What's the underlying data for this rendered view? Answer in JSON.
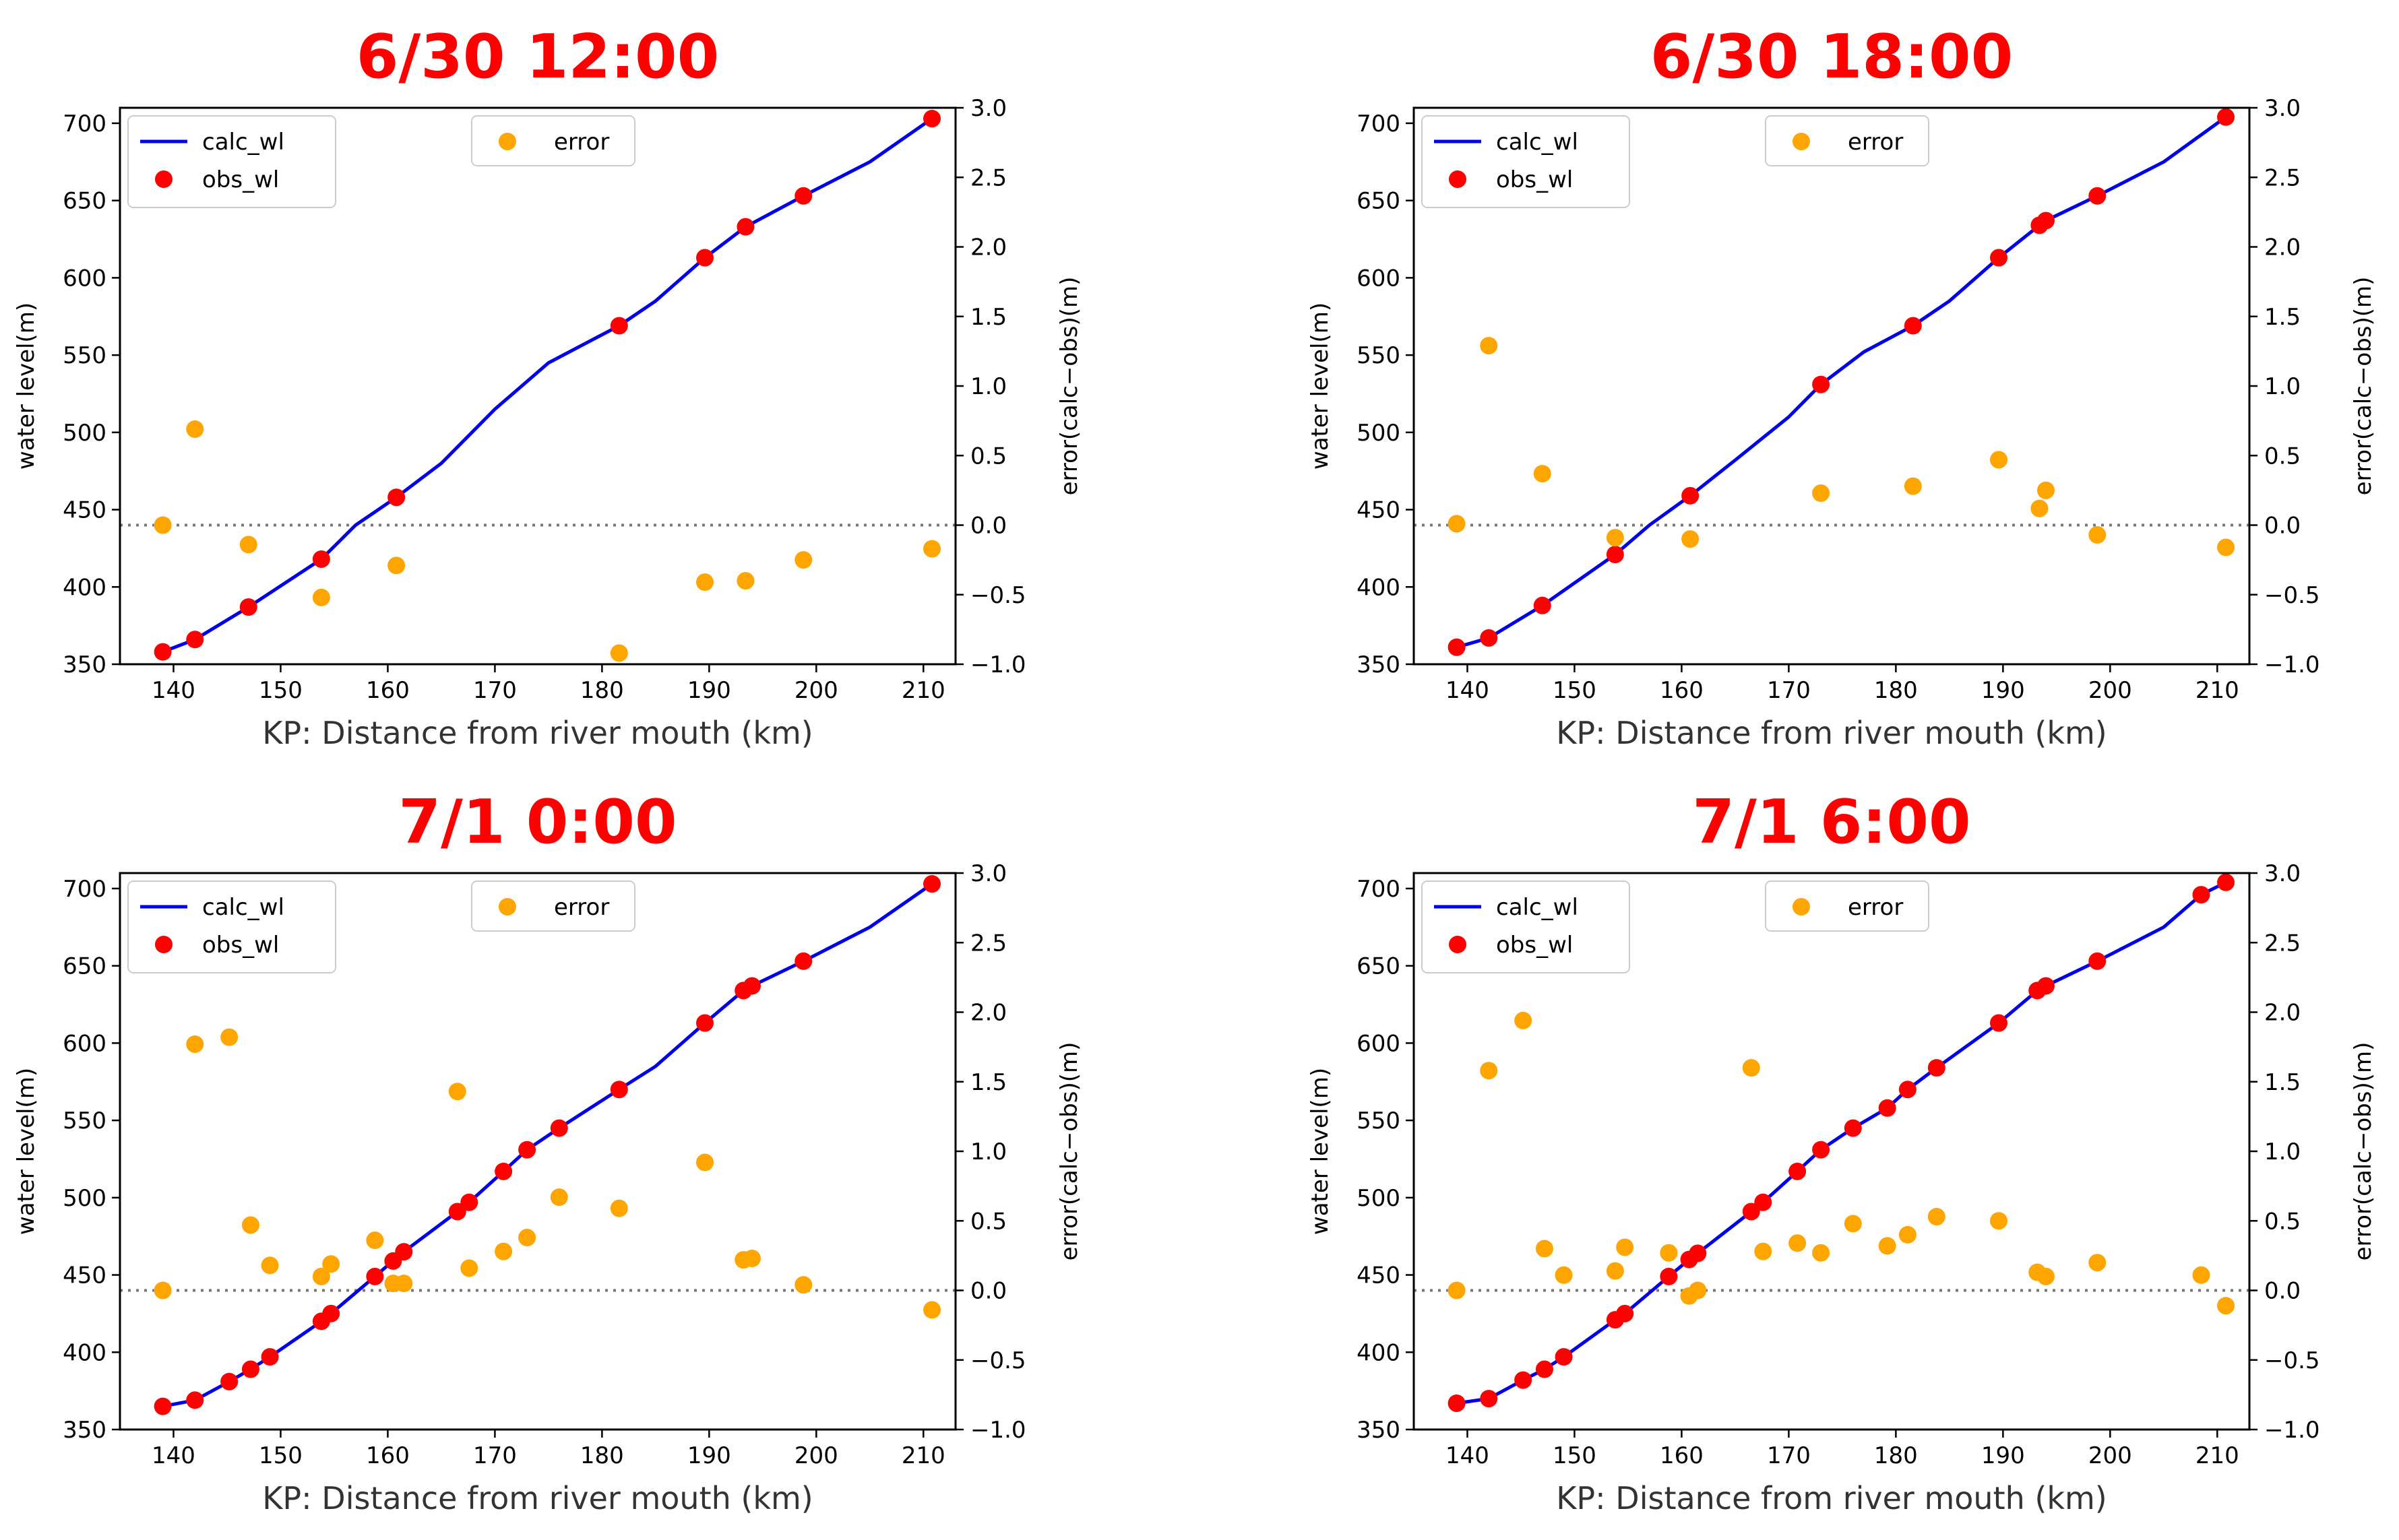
{
  "colors": {
    "calc": "#0000ee",
    "obs": "#ff0000",
    "error": "#ffa500",
    "title": "#ff0000"
  },
  "chart_data": [
    {
      "type": "line",
      "title": "6/30 12:00",
      "xlabel": "KP: Distance from river mouth (km)",
      "ylabel": "water level(m)",
      "y2label": "error(calc−obs)(m)",
      "xlim": [
        135,
        213
      ],
      "ylim": [
        350,
        710
      ],
      "y2lim": [
        -1.0,
        3.0
      ],
      "xticks": [
        140,
        150,
        160,
        170,
        180,
        190,
        200,
        210
      ],
      "yticks": [
        350,
        400,
        450,
        500,
        550,
        600,
        650,
        700
      ],
      "y2ticks": [
        "−1.0",
        "−0.5",
        "0.0",
        "0.5",
        "1.0",
        "1.5",
        "2.0",
        "2.5",
        "3.0"
      ],
      "legend": {
        "calc": "calc_wl",
        "obs": "obs_wl",
        "error": "error"
      },
      "calc_wl": [
        [
          139,
          358
        ],
        [
          142,
          366
        ],
        [
          147,
          387
        ],
        [
          153.8,
          418
        ],
        [
          157,
          440
        ],
        [
          160.8,
          458
        ],
        [
          165,
          480
        ],
        [
          170,
          515
        ],
        [
          175,
          545
        ],
        [
          181.6,
          569
        ],
        [
          185,
          585
        ],
        [
          189.6,
          613
        ],
        [
          193.4,
          633
        ],
        [
          198.8,
          653
        ],
        [
          205,
          675
        ],
        [
          210.8,
          703
        ]
      ],
      "obs_wl": [
        [
          139,
          358
        ],
        [
          142,
          366
        ],
        [
          147,
          387
        ],
        [
          153.8,
          418
        ],
        [
          160.8,
          458
        ],
        [
          181.6,
          569
        ],
        [
          189.6,
          613
        ],
        [
          193.4,
          633
        ],
        [
          198.8,
          653
        ],
        [
          210.8,
          703
        ]
      ],
      "error": [
        [
          139,
          0.0
        ],
        [
          142,
          0.69
        ],
        [
          147,
          -0.14
        ],
        [
          153.8,
          -0.52
        ],
        [
          160.8,
          -0.29
        ],
        [
          181.6,
          -0.92
        ],
        [
          189.6,
          -0.41
        ],
        [
          193.4,
          -0.4
        ],
        [
          198.8,
          -0.25
        ],
        [
          210.8,
          -0.17
        ]
      ]
    },
    {
      "type": "line",
      "title": "6/30 18:00",
      "xlabel": "KP: Distance from river mouth (km)",
      "ylabel": "water level(m)",
      "y2label": "error(calc−obs)(m)",
      "xlim": [
        135,
        213
      ],
      "ylim": [
        350,
        710
      ],
      "y2lim": [
        -1.0,
        3.0
      ],
      "xticks": [
        140,
        150,
        160,
        170,
        180,
        190,
        200,
        210
      ],
      "yticks": [
        350,
        400,
        450,
        500,
        550,
        600,
        650,
        700
      ],
      "y2ticks": [
        "−1.0",
        "−0.5",
        "0.0",
        "0.5",
        "1.0",
        "1.5",
        "2.0",
        "2.5",
        "3.0"
      ],
      "legend": {
        "calc": "calc_wl",
        "obs": "obs_wl",
        "error": "error"
      },
      "calc_wl": [
        [
          139,
          361
        ],
        [
          142,
          367
        ],
        [
          147,
          388
        ],
        [
          153.8,
          421
        ],
        [
          157,
          440
        ],
        [
          160.8,
          459
        ],
        [
          165,
          482
        ],
        [
          170,
          510
        ],
        [
          173,
          531
        ],
        [
          177,
          552
        ],
        [
          181.6,
          569
        ],
        [
          185,
          585
        ],
        [
          189.6,
          613
        ],
        [
          193.4,
          634
        ],
        [
          194,
          637
        ],
        [
          198.8,
          653
        ],
        [
          205,
          675
        ],
        [
          210.8,
          704
        ]
      ],
      "obs_wl": [
        [
          139,
          361
        ],
        [
          142,
          367
        ],
        [
          147,
          388
        ],
        [
          153.8,
          421
        ],
        [
          160.8,
          459
        ],
        [
          173,
          531
        ],
        [
          181.6,
          569
        ],
        [
          189.6,
          613
        ],
        [
          193.4,
          634
        ],
        [
          194,
          637
        ],
        [
          198.8,
          653
        ],
        [
          210.8,
          704
        ]
      ],
      "error": [
        [
          139,
          0.01
        ],
        [
          142,
          1.29
        ],
        [
          147,
          0.37
        ],
        [
          153.8,
          -0.09
        ],
        [
          160.8,
          -0.1
        ],
        [
          173,
          0.23
        ],
        [
          181.6,
          0.28
        ],
        [
          189.6,
          0.47
        ],
        [
          193.4,
          0.12
        ],
        [
          194,
          0.25
        ],
        [
          198.8,
          -0.07
        ],
        [
          210.8,
          -0.16
        ]
      ]
    },
    {
      "type": "line",
      "title": "7/1 0:00",
      "xlabel": "KP: Distance from river mouth (km)",
      "ylabel": "water level(m)",
      "y2label": "error(calc−obs)(m)",
      "xlim": [
        135,
        213
      ],
      "ylim": [
        350,
        710
      ],
      "y2lim": [
        -1.0,
        3.0
      ],
      "xticks": [
        140,
        150,
        160,
        170,
        180,
        190,
        200,
        210
      ],
      "yticks": [
        350,
        400,
        450,
        500,
        550,
        600,
        650,
        700
      ],
      "y2ticks": [
        "−1.0",
        "−0.5",
        "0.0",
        "0.5",
        "1.0",
        "1.5",
        "2.0",
        "2.5",
        "3.0"
      ],
      "legend": {
        "calc": "calc_wl",
        "obs": "obs_wl",
        "error": "error"
      },
      "calc_wl": [
        [
          139,
          365
        ],
        [
          142,
          369
        ],
        [
          145.2,
          381
        ],
        [
          147.2,
          389
        ],
        [
          149,
          397
        ],
        [
          153.8,
          420
        ],
        [
          154.7,
          425
        ],
        [
          158.8,
          449
        ],
        [
          160.8,
          461
        ],
        [
          161.5,
          465
        ],
        [
          166.5,
          491
        ],
        [
          167.6,
          497
        ],
        [
          170.8,
          517
        ],
        [
          173,
          531
        ],
        [
          176,
          545
        ],
        [
          181.6,
          570
        ],
        [
          185,
          585
        ],
        [
          189.6,
          613
        ],
        [
          193.2,
          634
        ],
        [
          194,
          637
        ],
        [
          198.8,
          653
        ],
        [
          205,
          675
        ],
        [
          210.8,
          703
        ]
      ],
      "obs_wl": [
        [
          139,
          365
        ],
        [
          142,
          369
        ],
        [
          145.2,
          381
        ],
        [
          147.2,
          389
        ],
        [
          149,
          397
        ],
        [
          153.8,
          420
        ],
        [
          154.7,
          425
        ],
        [
          158.8,
          449
        ],
        [
          160.5,
          459
        ],
        [
          161.5,
          465
        ],
        [
          166.5,
          491
        ],
        [
          167.6,
          497
        ],
        [
          170.8,
          517
        ],
        [
          173,
          531
        ],
        [
          176,
          545
        ],
        [
          181.6,
          570
        ],
        [
          189.6,
          613
        ],
        [
          193.2,
          634
        ],
        [
          194,
          637
        ],
        [
          198.8,
          653
        ],
        [
          210.8,
          703
        ]
      ],
      "error": [
        [
          139,
          0.0
        ],
        [
          142,
          1.77
        ],
        [
          145.2,
          1.82
        ],
        [
          147.2,
          0.47
        ],
        [
          149,
          0.18
        ],
        [
          153.8,
          0.1
        ],
        [
          154.7,
          0.19
        ],
        [
          158.8,
          0.36
        ],
        [
          160.5,
          0.05
        ],
        [
          161.5,
          0.05
        ],
        [
          166.5,
          1.43
        ],
        [
          167.6,
          0.16
        ],
        [
          170.8,
          0.28
        ],
        [
          173,
          0.38
        ],
        [
          176,
          0.67
        ],
        [
          181.6,
          0.59
        ],
        [
          189.6,
          0.92
        ],
        [
          193.2,
          0.22
        ],
        [
          194,
          0.23
        ],
        [
          198.8,
          0.04
        ],
        [
          210.8,
          -0.14
        ]
      ]
    },
    {
      "type": "line",
      "title": "7/1 6:00",
      "xlabel": "KP: Distance from river mouth (km)",
      "ylabel": "water level(m)",
      "y2label": "error(calc−obs)(m)",
      "xlim": [
        135,
        213
      ],
      "ylim": [
        350,
        710
      ],
      "y2lim": [
        -1.0,
        3.0
      ],
      "xticks": [
        140,
        150,
        160,
        170,
        180,
        190,
        200,
        210
      ],
      "yticks": [
        350,
        400,
        450,
        500,
        550,
        600,
        650,
        700
      ],
      "y2ticks": [
        "−1.0",
        "−0.5",
        "0.0",
        "0.5",
        "1.0",
        "1.5",
        "2.0",
        "2.5",
        "3.0"
      ],
      "legend": {
        "calc": "calc_wl",
        "obs": "obs_wl",
        "error": "error"
      },
      "calc_wl": [
        [
          139,
          367
        ],
        [
          142,
          370
        ],
        [
          145.2,
          382
        ],
        [
          147.2,
          389
        ],
        [
          149,
          397
        ],
        [
          153.8,
          421
        ],
        [
          154.7,
          425
        ],
        [
          158.8,
          449
        ],
        [
          160.7,
          460
        ],
        [
          161.5,
          464
        ],
        [
          166.5,
          491
        ],
        [
          167.6,
          497
        ],
        [
          170.8,
          517
        ],
        [
          173,
          531
        ],
        [
          176,
          545
        ],
        [
          179.2,
          558
        ],
        [
          181.1,
          570
        ],
        [
          183.8,
          584
        ],
        [
          189.6,
          613
        ],
        [
          193.2,
          634
        ],
        [
          194,
          637
        ],
        [
          198.8,
          653
        ],
        [
          205,
          675
        ],
        [
          208.5,
          696
        ],
        [
          210.8,
          704
        ]
      ],
      "obs_wl": [
        [
          139,
          367
        ],
        [
          142,
          370
        ],
        [
          145.2,
          382
        ],
        [
          147.2,
          389
        ],
        [
          149,
          397
        ],
        [
          153.8,
          421
        ],
        [
          154.7,
          425
        ],
        [
          158.8,
          449
        ],
        [
          160.7,
          460
        ],
        [
          161.5,
          464
        ],
        [
          166.5,
          491
        ],
        [
          167.6,
          497
        ],
        [
          170.8,
          517
        ],
        [
          173,
          531
        ],
        [
          176,
          545
        ],
        [
          179.2,
          558
        ],
        [
          181.1,
          570
        ],
        [
          183.8,
          584
        ],
        [
          189.6,
          613
        ],
        [
          193.2,
          634
        ],
        [
          194,
          637
        ],
        [
          198.8,
          653
        ],
        [
          208.5,
          696
        ],
        [
          210.8,
          704
        ]
      ],
      "error": [
        [
          139,
          0.0
        ],
        [
          142,
          1.58
        ],
        [
          145.2,
          1.94
        ],
        [
          147.2,
          0.3
        ],
        [
          149,
          0.11
        ],
        [
          153.8,
          0.14
        ],
        [
          154.7,
          0.31
        ],
        [
          158.8,
          0.27
        ],
        [
          160.7,
          -0.04
        ],
        [
          161.5,
          0.0
        ],
        [
          166.5,
          1.6
        ],
        [
          167.6,
          0.28
        ],
        [
          170.8,
          0.34
        ],
        [
          173,
          0.27
        ],
        [
          176,
          0.48
        ],
        [
          179.2,
          0.32
        ],
        [
          181.1,
          0.4
        ],
        [
          183.8,
          0.53
        ],
        [
          189.6,
          0.5
        ],
        [
          193.2,
          0.13
        ],
        [
          194,
          0.1
        ],
        [
          198.8,
          0.2
        ],
        [
          208.5,
          0.11
        ],
        [
          210.8,
          -0.11
        ]
      ]
    }
  ]
}
